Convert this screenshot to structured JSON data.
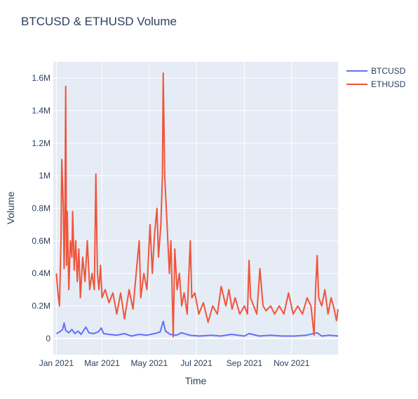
{
  "chart_data": {
    "type": "line",
    "title": "BTCUSD & ETHUSD Volume",
    "xlabel": "Time",
    "ylabel": "Volume",
    "x_start": "2021-01-01",
    "x_end": "2021-12-31",
    "xlim": [
      "2020-12-28",
      "2021-12-31"
    ],
    "ylim": [
      -100000,
      1700000
    ],
    "x_ticks": [
      {
        "date": "2021-01-01",
        "label": "Jan 2021"
      },
      {
        "date": "2021-03-01",
        "label": "Mar 2021"
      },
      {
        "date": "2021-05-01",
        "label": "May 2021"
      },
      {
        "date": "2021-07-01",
        "label": "Jul 2021"
      },
      {
        "date": "2021-09-01",
        "label": "Sep 2021"
      },
      {
        "date": "2021-11-01",
        "label": "Nov 2021"
      }
    ],
    "y_ticks": [
      {
        "value": 0,
        "label": "0"
      },
      {
        "value": 200000,
        "label": "0.2M"
      },
      {
        "value": 400000,
        "label": "0.4M"
      },
      {
        "value": 600000,
        "label": "0.6M"
      },
      {
        "value": 800000,
        "label": "0.8M"
      },
      {
        "value": 1000000,
        "label": "1M"
      },
      {
        "value": 1200000,
        "label": "1.2M"
      },
      {
        "value": 1400000,
        "label": "1.4M"
      },
      {
        "value": 1600000,
        "label": "1.6M"
      }
    ],
    "grid": true,
    "legend_position": "top-right",
    "series": [
      {
        "name": "BTCUSD",
        "color": "#636efa",
        "points": [
          [
            "2021-01-01",
            30000
          ],
          [
            "2021-01-05",
            40000
          ],
          [
            "2021-01-09",
            55000
          ],
          [
            "2021-01-11",
            95000
          ],
          [
            "2021-01-13",
            50000
          ],
          [
            "2021-01-17",
            35000
          ],
          [
            "2021-01-21",
            55000
          ],
          [
            "2021-01-25",
            30000
          ],
          [
            "2021-01-29",
            45000
          ],
          [
            "2021-02-02",
            25000
          ],
          [
            "2021-02-08",
            70000
          ],
          [
            "2021-02-12",
            35000
          ],
          [
            "2021-02-18",
            30000
          ],
          [
            "2021-02-24",
            40000
          ],
          [
            "2021-02-28",
            65000
          ],
          [
            "2021-03-03",
            30000
          ],
          [
            "2021-03-10",
            25000
          ],
          [
            "2021-03-20",
            20000
          ],
          [
            "2021-03-30",
            30000
          ],
          [
            "2021-04-08",
            15000
          ],
          [
            "2021-04-18",
            25000
          ],
          [
            "2021-04-28",
            20000
          ],
          [
            "2021-05-08",
            30000
          ],
          [
            "2021-05-15",
            40000
          ],
          [
            "2021-05-19",
            105000
          ],
          [
            "2021-05-22",
            45000
          ],
          [
            "2021-05-28",
            25000
          ],
          [
            "2021-06-05",
            20000
          ],
          [
            "2021-06-12",
            35000
          ],
          [
            "2021-06-22",
            20000
          ],
          [
            "2021-07-05",
            15000
          ],
          [
            "2021-07-20",
            20000
          ],
          [
            "2021-08-01",
            15000
          ],
          [
            "2021-08-15",
            25000
          ],
          [
            "2021-09-01",
            15000
          ],
          [
            "2021-09-07",
            30000
          ],
          [
            "2021-09-20",
            15000
          ],
          [
            "2021-10-05",
            20000
          ],
          [
            "2021-10-20",
            15000
          ],
          [
            "2021-11-05",
            15000
          ],
          [
            "2021-11-20",
            20000
          ],
          [
            "2021-12-04",
            35000
          ],
          [
            "2021-12-10",
            15000
          ],
          [
            "2021-12-20",
            20000
          ],
          [
            "2021-12-31",
            15000
          ]
        ]
      },
      {
        "name": "ETHUSD",
        "color": "#ef553b",
        "points": [
          [
            "2021-01-01",
            400000
          ],
          [
            "2021-01-03",
            280000
          ],
          [
            "2021-01-05",
            200000
          ],
          [
            "2021-01-07",
            600000
          ],
          [
            "2021-01-08",
            1100000
          ],
          [
            "2021-01-10",
            800000
          ],
          [
            "2021-01-11",
            430000
          ],
          [
            "2021-01-12",
            700000
          ],
          [
            "2021-01-13",
            1550000
          ],
          [
            "2021-01-14",
            450000
          ],
          [
            "2021-01-15",
            780000
          ],
          [
            "2021-01-17",
            300000
          ],
          [
            "2021-01-19",
            600000
          ],
          [
            "2021-01-21",
            500000
          ],
          [
            "2021-01-22",
            780000
          ],
          [
            "2021-01-24",
            420000
          ],
          [
            "2021-01-26",
            600000
          ],
          [
            "2021-01-28",
            350000
          ],
          [
            "2021-01-30",
            550000
          ],
          [
            "2021-02-01",
            250000
          ],
          [
            "2021-02-04",
            500000
          ],
          [
            "2021-02-07",
            350000
          ],
          [
            "2021-02-10",
            600000
          ],
          [
            "2021-02-13",
            300000
          ],
          [
            "2021-02-16",
            400000
          ],
          [
            "2021-02-19",
            300000
          ],
          [
            "2021-02-21",
            1010000
          ],
          [
            "2021-02-23",
            400000
          ],
          [
            "2021-02-25",
            300000
          ],
          [
            "2021-02-27",
            450000
          ],
          [
            "2021-03-01",
            250000
          ],
          [
            "2021-03-05",
            300000
          ],
          [
            "2021-03-10",
            220000
          ],
          [
            "2021-03-15",
            280000
          ],
          [
            "2021-03-20",
            150000
          ],
          [
            "2021-03-25",
            280000
          ],
          [
            "2021-03-30",
            120000
          ],
          [
            "2021-04-05",
            300000
          ],
          [
            "2021-04-10",
            180000
          ],
          [
            "2021-04-15",
            450000
          ],
          [
            "2021-04-18",
            600000
          ],
          [
            "2021-04-20",
            250000
          ],
          [
            "2021-04-24",
            400000
          ],
          [
            "2021-04-28",
            300000
          ],
          [
            "2021-05-02",
            700000
          ],
          [
            "2021-05-05",
            400000
          ],
          [
            "2021-05-08",
            650000
          ],
          [
            "2021-05-11",
            800000
          ],
          [
            "2021-05-13",
            500000
          ],
          [
            "2021-05-16",
            700000
          ],
          [
            "2021-05-18",
            1000000
          ],
          [
            "2021-05-19",
            1630000
          ],
          [
            "2021-05-21",
            1000000
          ],
          [
            "2021-05-23",
            800000
          ],
          [
            "2021-05-25",
            600000
          ],
          [
            "2021-05-27",
            400000
          ],
          [
            "2021-05-29",
            600000
          ],
          [
            "2021-06-01",
            10000
          ],
          [
            "2021-06-03",
            550000
          ],
          [
            "2021-06-06",
            300000
          ],
          [
            "2021-06-09",
            400000
          ],
          [
            "2021-06-12",
            200000
          ],
          [
            "2021-06-15",
            280000
          ],
          [
            "2021-06-19",
            150000
          ],
          [
            "2021-06-23",
            600000
          ],
          [
            "2021-06-25",
            250000
          ],
          [
            "2021-06-29",
            280000
          ],
          [
            "2021-07-04",
            150000
          ],
          [
            "2021-07-10",
            220000
          ],
          [
            "2021-07-16",
            100000
          ],
          [
            "2021-07-22",
            200000
          ],
          [
            "2021-07-28",
            150000
          ],
          [
            "2021-08-02",
            320000
          ],
          [
            "2021-08-08",
            200000
          ],
          [
            "2021-08-12",
            300000
          ],
          [
            "2021-08-16",
            180000
          ],
          [
            "2021-08-20",
            250000
          ],
          [
            "2021-08-26",
            150000
          ],
          [
            "2021-09-01",
            200000
          ],
          [
            "2021-09-05",
            150000
          ],
          [
            "2021-09-07",
            480000
          ],
          [
            "2021-09-09",
            250000
          ],
          [
            "2021-09-13",
            200000
          ],
          [
            "2021-09-17",
            150000
          ],
          [
            "2021-09-21",
            430000
          ],
          [
            "2021-09-25",
            200000
          ],
          [
            "2021-09-29",
            170000
          ],
          [
            "2021-10-05",
            200000
          ],
          [
            "2021-10-10",
            150000
          ],
          [
            "2021-10-16",
            200000
          ],
          [
            "2021-10-22",
            150000
          ],
          [
            "2021-10-28",
            280000
          ],
          [
            "2021-11-03",
            150000
          ],
          [
            "2021-11-09",
            200000
          ],
          [
            "2021-11-15",
            150000
          ],
          [
            "2021-11-21",
            250000
          ],
          [
            "2021-11-26",
            200000
          ],
          [
            "2021-11-30",
            20000
          ],
          [
            "2021-12-02",
            300000
          ],
          [
            "2021-12-04",
            510000
          ],
          [
            "2021-12-06",
            250000
          ],
          [
            "2021-12-10",
            200000
          ],
          [
            "2021-12-14",
            300000
          ],
          [
            "2021-12-18",
            150000
          ],
          [
            "2021-12-22",
            250000
          ],
          [
            "2021-12-26",
            180000
          ],
          [
            "2021-12-29",
            110000
          ],
          [
            "2021-12-31",
            180000
          ]
        ]
      }
    ]
  }
}
